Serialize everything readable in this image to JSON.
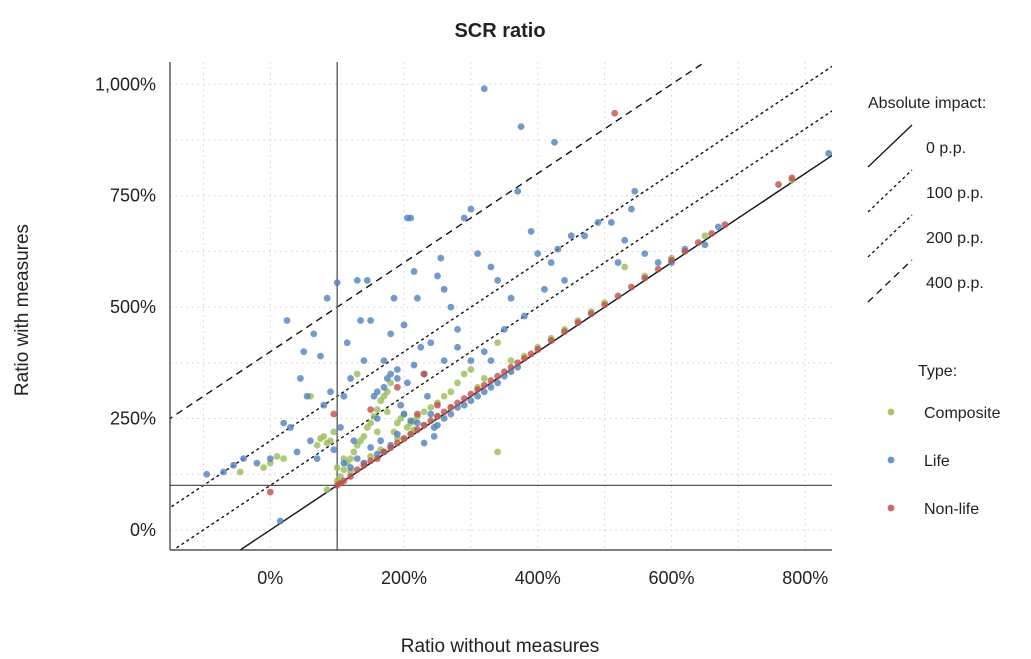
{
  "chart_data": {
    "type": "scatter",
    "title": "SCR ratio",
    "xlabel": "Ratio without measures",
    "ylabel": "Ratio with measures",
    "xlim": [
      -150,
      840
    ],
    "ylim": [
      -45,
      1050
    ],
    "x_ticks": [
      0,
      200,
      400,
      600,
      800
    ],
    "x_tick_labels": [
      "0%",
      "200%",
      "400%",
      "600%",
      "800%"
    ],
    "y_ticks": [
      0,
      250,
      500,
      750,
      1000
    ],
    "y_tick_labels": [
      "0%",
      "250%",
      "500%",
      "750%",
      "1,000%"
    ],
    "grid": true,
    "reference_lines": {
      "x": 100,
      "y": 100
    },
    "impact_lines": [
      {
        "label": "0 p.p.",
        "offset": 0,
        "dash": "solid"
      },
      {
        "label": "100 p.p.",
        "offset": 100,
        "dash": "dotted"
      },
      {
        "label": "200 p.p.",
        "offset": 200,
        "dash": "dotted"
      },
      {
        "label": "400 p.p.",
        "offset": 400,
        "dash": "dashed"
      }
    ],
    "legend": {
      "impact_title": "Absolute impact:",
      "type_title": "Type:",
      "placement": "right"
    },
    "series": [
      {
        "name": "Composite",
        "color": "#9bbb59",
        "points": [
          [
            -45,
            130
          ],
          [
            -10,
            140
          ],
          [
            0,
            150
          ],
          [
            10,
            165
          ],
          [
            20,
            160
          ],
          [
            70,
            190
          ],
          [
            75,
            205
          ],
          [
            80,
            210
          ],
          [
            85,
            195
          ],
          [
            90,
            200
          ],
          [
            95,
            220
          ],
          [
            100,
            110
          ],
          [
            105,
            120
          ],
          [
            110,
            135
          ],
          [
            115,
            150
          ],
          [
            120,
            160
          ],
          [
            125,
            175
          ],
          [
            130,
            190
          ],
          [
            135,
            200
          ],
          [
            140,
            210
          ],
          [
            145,
            230
          ],
          [
            150,
            240
          ],
          [
            155,
            255
          ],
          [
            160,
            270
          ],
          [
            165,
            290
          ],
          [
            170,
            300
          ],
          [
            175,
            310
          ],
          [
            180,
            330
          ],
          [
            185,
            220
          ],
          [
            190,
            240
          ],
          [
            195,
            250
          ],
          [
            200,
            260
          ],
          [
            205,
            230
          ],
          [
            210,
            240
          ],
          [
            215,
            245
          ],
          [
            220,
            255
          ],
          [
            230,
            265
          ],
          [
            240,
            275
          ],
          [
            250,
            285
          ],
          [
            260,
            300
          ],
          [
            270,
            310
          ],
          [
            280,
            330
          ],
          [
            290,
            350
          ],
          [
            300,
            360
          ],
          [
            310,
            320
          ],
          [
            320,
            340
          ],
          [
            340,
            420
          ],
          [
            360,
            380
          ],
          [
            380,
            390
          ],
          [
            400,
            410
          ],
          [
            420,
            430
          ],
          [
            440,
            450
          ],
          [
            460,
            470
          ],
          [
            480,
            490
          ],
          [
            500,
            510
          ],
          [
            530,
            590
          ],
          [
            560,
            570
          ],
          [
            600,
            610
          ],
          [
            650,
            660
          ],
          [
            780,
            785
          ],
          [
            340,
            175
          ],
          [
            85,
            90
          ],
          [
            130,
            350
          ],
          [
            160,
            220
          ],
          [
            175,
            265
          ],
          [
            190,
            205
          ],
          [
            210,
            215
          ],
          [
            230,
            235
          ],
          [
            250,
            255
          ],
          [
            270,
            275
          ],
          [
            120,
            130
          ],
          [
            140,
            150
          ],
          [
            150,
            165
          ],
          [
            165,
            180
          ],
          [
            180,
            185
          ],
          [
            200,
            205
          ],
          [
            215,
            225
          ],
          [
            100,
            140
          ],
          [
            110,
            160
          ],
          [
            60,
            300
          ]
        ]
      },
      {
        "name": "Life",
        "color": "#4f81bd",
        "points": [
          [
            -95,
            125
          ],
          [
            -70,
            130
          ],
          [
            -55,
            145
          ],
          [
            -40,
            160
          ],
          [
            -20,
            150
          ],
          [
            0,
            160
          ],
          [
            15,
            20
          ],
          [
            20,
            240
          ],
          [
            25,
            470
          ],
          [
            30,
            230
          ],
          [
            40,
            175
          ],
          [
            45,
            340
          ],
          [
            50,
            400
          ],
          [
            55,
            300
          ],
          [
            60,
            200
          ],
          [
            65,
            440
          ],
          [
            70,
            160
          ],
          [
            75,
            390
          ],
          [
            80,
            280
          ],
          [
            85,
            520
          ],
          [
            90,
            310
          ],
          [
            95,
            180
          ],
          [
            100,
            555
          ],
          [
            105,
            230
          ],
          [
            110,
            300
          ],
          [
            115,
            420
          ],
          [
            120,
            340
          ],
          [
            125,
            200
          ],
          [
            130,
            560
          ],
          [
            135,
            470
          ],
          [
            140,
            380
          ],
          [
            145,
            560
          ],
          [
            150,
            470
          ],
          [
            155,
            300
          ],
          [
            160,
            250
          ],
          [
            165,
            200
          ],
          [
            170,
            380
          ],
          [
            175,
            340
          ],
          [
            180,
            440
          ],
          [
            185,
            520
          ],
          [
            190,
            360
          ],
          [
            195,
            280
          ],
          [
            200,
            460
          ],
          [
            205,
            700
          ],
          [
            210,
            700
          ],
          [
            215,
            580
          ],
          [
            220,
            520
          ],
          [
            225,
            410
          ],
          [
            230,
            350
          ],
          [
            235,
            300
          ],
          [
            240,
            260
          ],
          [
            245,
            230
          ],
          [
            250,
            570
          ],
          [
            255,
            610
          ],
          [
            260,
            540
          ],
          [
            270,
            500
          ],
          [
            280,
            450
          ],
          [
            290,
            700
          ],
          [
            300,
            720
          ],
          [
            310,
            620
          ],
          [
            320,
            990
          ],
          [
            330,
            590
          ],
          [
            340,
            560
          ],
          [
            350,
            450
          ],
          [
            360,
            520
          ],
          [
            370,
            760
          ],
          [
            380,
            480
          ],
          [
            390,
            670
          ],
          [
            400,
            620
          ],
          [
            410,
            540
          ],
          [
            420,
            600
          ],
          [
            425,
            870
          ],
          [
            430,
            630
          ],
          [
            440,
            560
          ],
          [
            450,
            660
          ],
          [
            470,
            660
          ],
          [
            490,
            690
          ],
          [
            510,
            690
          ],
          [
            520,
            600
          ],
          [
            530,
            650
          ],
          [
            540,
            720
          ],
          [
            545,
            760
          ],
          [
            560,
            620
          ],
          [
            580,
            600
          ],
          [
            600,
            600
          ],
          [
            620,
            630
          ],
          [
            650,
            640
          ],
          [
            670,
            680
          ],
          [
            835,
            845
          ],
          [
            375,
            905
          ],
          [
            250,
            235
          ],
          [
            260,
            250
          ],
          [
            270,
            260
          ],
          [
            280,
            275
          ],
          [
            290,
            280
          ],
          [
            300,
            290
          ],
          [
            310,
            300
          ],
          [
            320,
            310
          ],
          [
            330,
            320
          ],
          [
            340,
            330
          ],
          [
            350,
            345
          ],
          [
            360,
            355
          ],
          [
            370,
            365
          ],
          [
            230,
            195
          ],
          [
            245,
            210
          ],
          [
            150,
            185
          ],
          [
            160,
            170
          ],
          [
            170,
            175
          ],
          [
            180,
            190
          ],
          [
            190,
            215
          ],
          [
            110,
            150
          ],
          [
            120,
            140
          ],
          [
            130,
            160
          ],
          [
            140,
            150
          ],
          [
            200,
            260
          ],
          [
            210,
            245
          ],
          [
            220,
            240
          ],
          [
            205,
            330
          ],
          [
            215,
            370
          ],
          [
            160,
            310
          ],
          [
            170,
            320
          ],
          [
            180,
            350
          ],
          [
            190,
            340
          ],
          [
            240,
            420
          ],
          [
            260,
            380
          ],
          [
            280,
            410
          ],
          [
            300,
            380
          ],
          [
            320,
            400
          ],
          [
            330,
            380
          ]
        ]
      },
      {
        "name": "Non-life",
        "color": "#c0504d",
        "points": [
          [
            0,
            85
          ],
          [
            95,
            260
          ],
          [
            100,
            100
          ],
          [
            105,
            105
          ],
          [
            110,
            110
          ],
          [
            120,
            120
          ],
          [
            130,
            135
          ],
          [
            140,
            145
          ],
          [
            150,
            155
          ],
          [
            160,
            160
          ],
          [
            170,
            175
          ],
          [
            180,
            185
          ],
          [
            190,
            195
          ],
          [
            200,
            205
          ],
          [
            210,
            215
          ],
          [
            220,
            225
          ],
          [
            230,
            235
          ],
          [
            240,
            245
          ],
          [
            250,
            255
          ],
          [
            260,
            265
          ],
          [
            270,
            275
          ],
          [
            280,
            285
          ],
          [
            290,
            295
          ],
          [
            300,
            305
          ],
          [
            310,
            315
          ],
          [
            320,
            325
          ],
          [
            330,
            335
          ],
          [
            340,
            345
          ],
          [
            350,
            355
          ],
          [
            360,
            365
          ],
          [
            370,
            375
          ],
          [
            380,
            385
          ],
          [
            390,
            395
          ],
          [
            400,
            405
          ],
          [
            420,
            425
          ],
          [
            440,
            445
          ],
          [
            460,
            465
          ],
          [
            480,
            485
          ],
          [
            500,
            505
          ],
          [
            520,
            525
          ],
          [
            540,
            545
          ],
          [
            560,
            565
          ],
          [
            580,
            585
          ],
          [
            600,
            605
          ],
          [
            620,
            625
          ],
          [
            640,
            645
          ],
          [
            660,
            665
          ],
          [
            680,
            685
          ],
          [
            760,
            775
          ],
          [
            780,
            790
          ],
          [
            515,
            935
          ],
          [
            230,
            350
          ],
          [
            190,
            320
          ],
          [
            150,
            270
          ],
          [
            220,
            260
          ],
          [
            250,
            280
          ]
        ]
      }
    ]
  }
}
